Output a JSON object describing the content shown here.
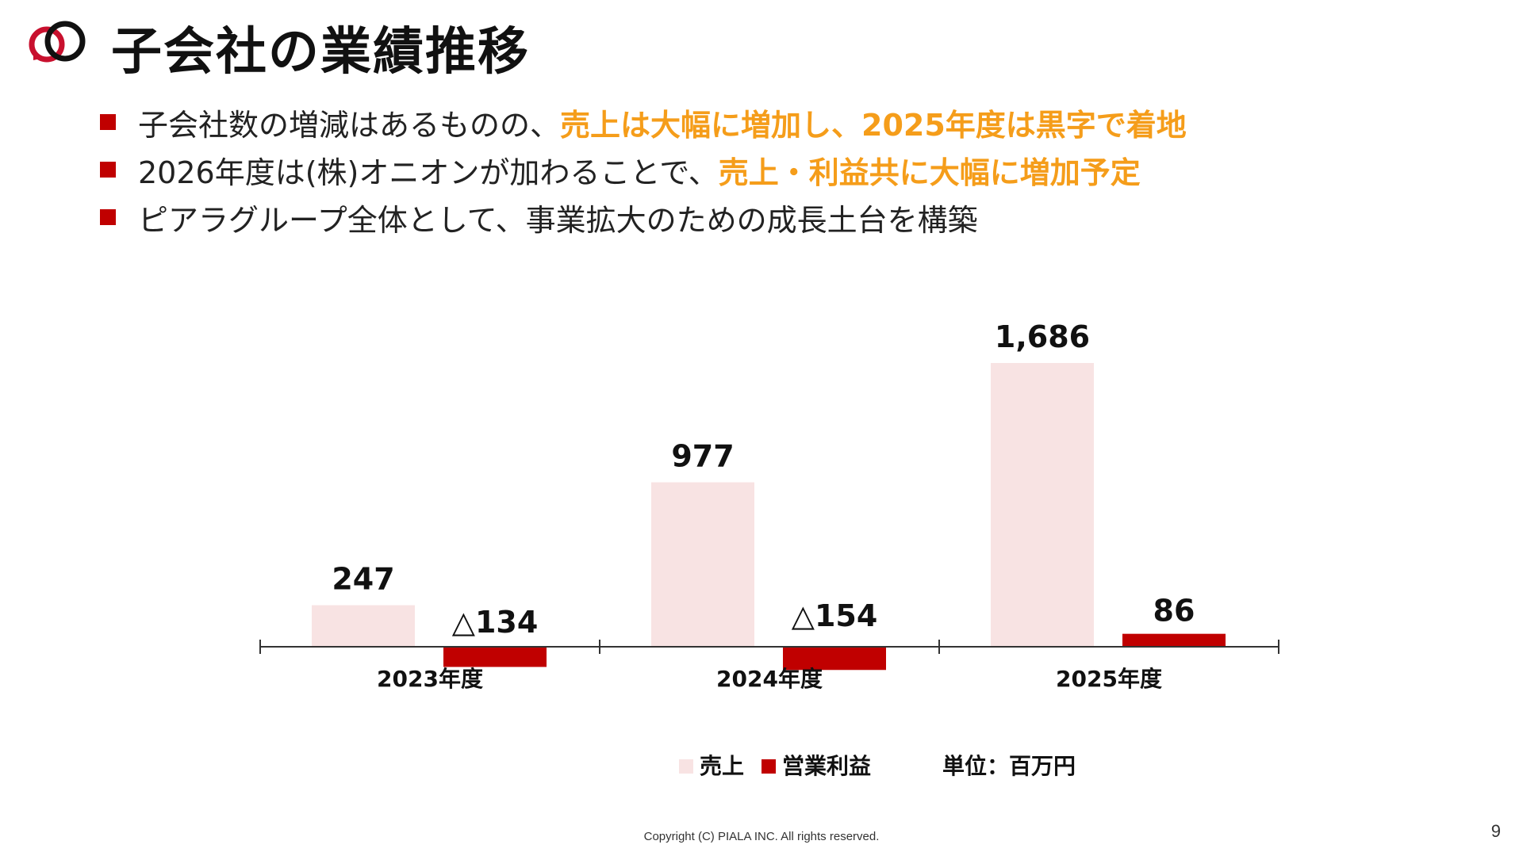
{
  "header": {
    "title": "子会社の業績推移"
  },
  "logo": {
    "icon": "piala-rings-logo-icon",
    "colors": {
      "red": "#c8102e",
      "black": "#111111"
    }
  },
  "bullets": [
    {
      "text": "子会社数の増減はあるものの、",
      "highlight": "売上は大幅に増加し、2025年度は黒字で着地"
    },
    {
      "text": "2026年度は(株)オニオンが加わることで、",
      "highlight": "売上・利益共に大幅に増加予定"
    },
    {
      "text": "ピアラグループ全体として、事業拡大のための成長土台を構築",
      "highlight": ""
    }
  ],
  "colors": {
    "highlight": "#f59d1a",
    "bullet_marker": "#c00000",
    "sales_bar": "#f8e3e3",
    "profit_bar": "#c00000",
    "axis": "#333333",
    "label": "#111111"
  },
  "chart_data": {
    "type": "bar",
    "categories": [
      "2023年度",
      "2024年度",
      "2025年度"
    ],
    "series": [
      {
        "name": "売上",
        "values": [
          247,
          977,
          1686
        ],
        "labels": [
          "247",
          "977",
          "1,686"
        ]
      },
      {
        "name": "営業利益",
        "values": [
          -134,
          -154,
          86
        ],
        "labels": [
          "△134",
          "△154",
          "86"
        ]
      }
    ],
    "ylim": [
      -160,
      1700
    ],
    "unit_label": "単位：百万円",
    "legend_position": "bottom-center",
    "grid": false,
    "axis_lines": false
  },
  "footer": {
    "copyright": "Copyright (C) PIALA INC. All rights reserved.",
    "page_number": "9"
  }
}
